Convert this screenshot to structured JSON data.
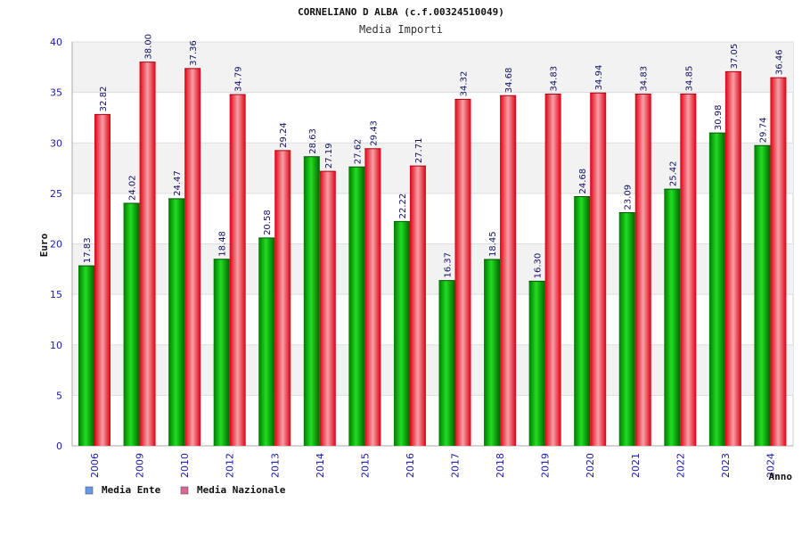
{
  "title": "CORNELIANO D ALBA (c.f.00324510049)",
  "subtitle": "Media Importi",
  "chart_data": {
    "type": "bar",
    "categories": [
      "2006",
      "2009",
      "2010",
      "2012",
      "2013",
      "2014",
      "2015",
      "2016",
      "2017",
      "2018",
      "2019",
      "2020",
      "2021",
      "2022",
      "2023",
      "2024"
    ],
    "series": [
      {
        "name": "Media Ente",
        "values": [
          17.83,
          24.02,
          24.47,
          18.48,
          20.58,
          28.63,
          27.62,
          22.22,
          16.37,
          18.45,
          16.3,
          24.68,
          23.09,
          25.42,
          30.98,
          29.74
        ],
        "color": "#00c000",
        "legend_color": "#6699ee"
      },
      {
        "name": "Media Nazionale",
        "values": [
          32.82,
          38.0,
          37.36,
          34.79,
          29.24,
          27.19,
          29.43,
          27.71,
          34.32,
          34.68,
          34.83,
          34.94,
          34.83,
          34.85,
          37.05,
          36.46
        ],
        "color": "#ee1122",
        "legend_color": "#dd6699"
      }
    ],
    "value_labels": [
      [
        "17.83",
        "24.02",
        "24.47",
        "18.48",
        "20.58",
        "28.63",
        "27.62",
        "22.22",
        "16.37",
        "18.45",
        "16.30",
        "24.68",
        "23.09",
        "25.42",
        "30.98",
        "29.74"
      ],
      [
        "32.82",
        "38.00",
        "37.36",
        "34.79",
        "29.24",
        "27.19",
        "29.43",
        "27.71",
        "34.32",
        "34.68",
        "34.83",
        "34.94",
        "34.83",
        "34.85",
        "37.05",
        "36.46"
      ]
    ],
    "ylabel": "Euro",
    "xlabel": "Anno",
    "ylim": [
      0,
      40
    ],
    "yticks": [
      0,
      5,
      10,
      15,
      20,
      25,
      30,
      35,
      40
    ],
    "ytick_labels": [
      "0",
      "5",
      "10",
      "15",
      "20",
      "25",
      "30",
      "35",
      "40"
    ],
    "grid": true,
    "legend_position": "bottom-left"
  }
}
